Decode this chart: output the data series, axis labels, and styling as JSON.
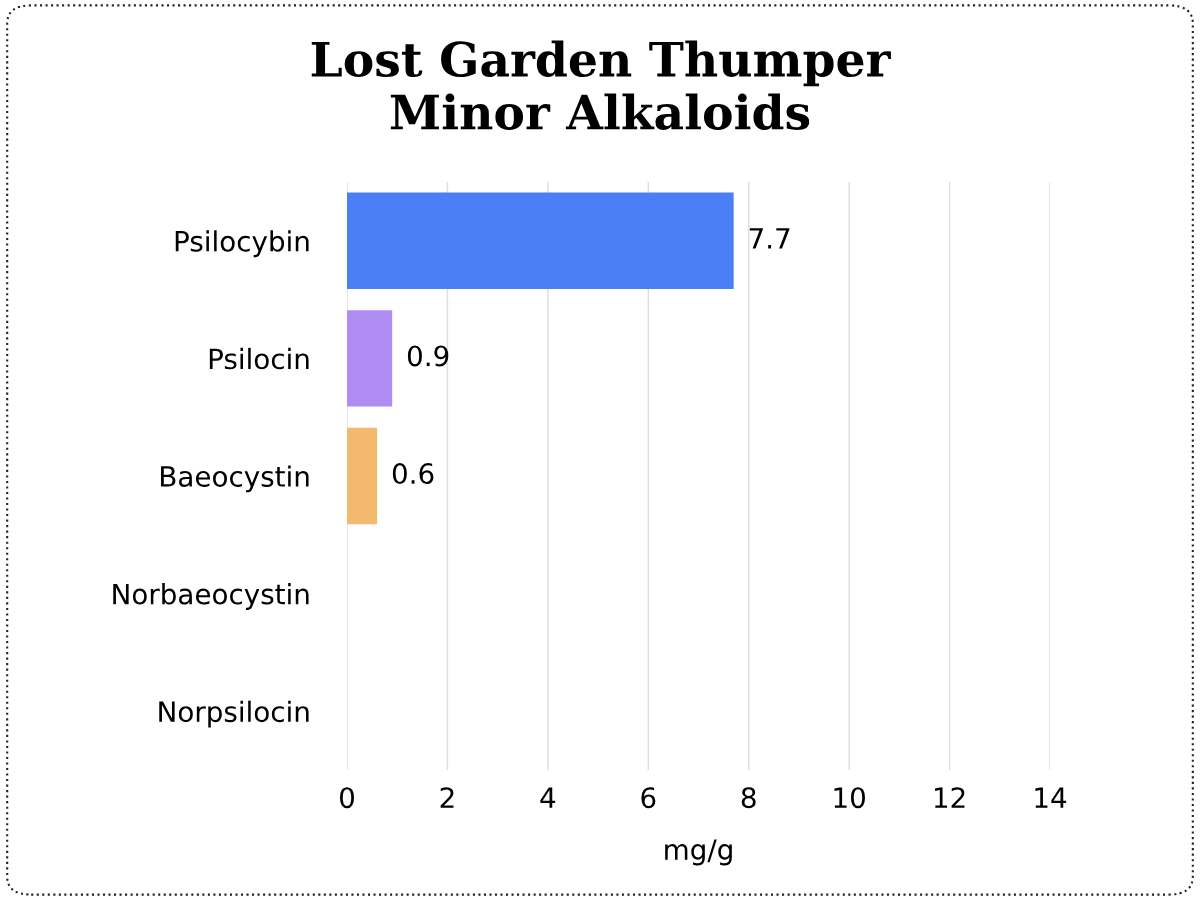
{
  "chart_data": {
    "type": "bar",
    "orientation": "horizontal",
    "title": "Lost Garden Thumper\nMinor Alkaloids",
    "xlabel": "mg/g",
    "categories": [
      "Psilocybin",
      "Psilocin",
      "Baeocystin",
      "Norbaeocystin",
      "Norpsilocin"
    ],
    "values": [
      7.7,
      0.9,
      0.6,
      0,
      0
    ],
    "colors": [
      "#4a7ff5",
      "#ae8cf2",
      "#f3b96e",
      "#4a7ff5",
      "#4a7ff5"
    ],
    "value_labels": [
      "7.7",
      "0.9",
      "0.6",
      null,
      null
    ],
    "xlim": [
      0,
      14
    ],
    "xticks": [
      0,
      2,
      4,
      6,
      8,
      10,
      12,
      14
    ],
    "grid": "x"
  }
}
